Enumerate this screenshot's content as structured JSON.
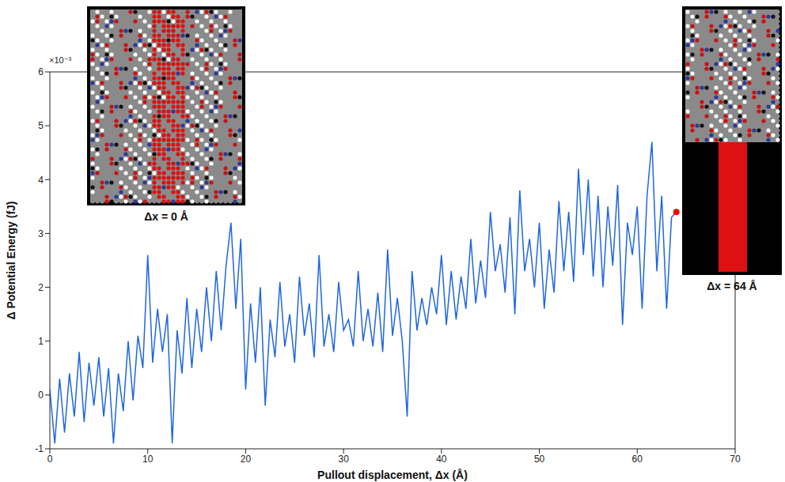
{
  "chart_data": {
    "type": "line",
    "x_label": "Pullout displacement, Δx (Å)",
    "y_label": "Δ Potential Energy (fJ)",
    "annotations": [
      "×10⁻³",
      "Δx = 0 Å",
      "Δx = 64 Å"
    ],
    "color": "#1f66e0",
    "grid": false,
    "xlim": [
      0,
      70
    ],
    "xticks": [
      0,
      10,
      20,
      30,
      40,
      50,
      60,
      70
    ],
    "ylim": [
      -1,
      6
    ],
    "yticks": [
      -1,
      0,
      1,
      2,
      3,
      4,
      5,
      6
    ],
    "end_point": {
      "x": 64,
      "y": 3.4,
      "color": "#ff0000"
    },
    "x": [
      0,
      0.5,
      1,
      1.5,
      2,
      2.5,
      3,
      3.5,
      4,
      4.5,
      5,
      5.5,
      6,
      6.5,
      7,
      7.5,
      8,
      8.5,
      9,
      9.5,
      10,
      10.5,
      11,
      11.5,
      12,
      12.5,
      13,
      13.5,
      14,
      14.5,
      15,
      15.5,
      16,
      16.5,
      17,
      17.5,
      18,
      18.5,
      19,
      19.5,
      20,
      20.5,
      21,
      21.5,
      22,
      22.5,
      23,
      23.5,
      24,
      24.5,
      25,
      25.5,
      26,
      26.5,
      27,
      27.5,
      28,
      28.5,
      29,
      29.5,
      30,
      30.5,
      31,
      31.5,
      32,
      32.5,
      33,
      33.5,
      34,
      34.5,
      35,
      35.5,
      36,
      36.5,
      37,
      37.5,
      38,
      38.5,
      39,
      39.5,
      40,
      40.5,
      41,
      41.5,
      42,
      42.5,
      43,
      43.5,
      44,
      44.5,
      45,
      45.5,
      46,
      46.5,
      47,
      47.5,
      48,
      48.5,
      49,
      49.5,
      50,
      50.5,
      51,
      51.5,
      52,
      52.5,
      53,
      53.5,
      54,
      54.5,
      55,
      55.5,
      56,
      56.5,
      57,
      57.5,
      58,
      58.5,
      59,
      59.5,
      60,
      60.5,
      61,
      61.5,
      62,
      62.5,
      63,
      63.5,
      64
    ],
    "values": [
      0.1,
      -0.9,
      0.3,
      -0.7,
      0.4,
      -0.4,
      0.8,
      -0.5,
      0.6,
      -0.2,
      0.7,
      -0.4,
      0.5,
      -0.9,
      0.4,
      -0.3,
      1.0,
      -0.1,
      1.1,
      0.5,
      2.6,
      0.6,
      1.6,
      0.8,
      1.5,
      -0.9,
      1.2,
      0.4,
      1.8,
      0.5,
      1.6,
      0.8,
      2.0,
      1.0,
      2.3,
      1.2,
      2.4,
      3.2,
      1.6,
      2.9,
      0.1,
      1.7,
      0.6,
      2.0,
      -0.2,
      1.4,
      0.7,
      2.1,
      0.9,
      1.5,
      0.6,
      2.2,
      1.1,
      1.7,
      0.7,
      2.6,
      0.9,
      1.5,
      0.8,
      2.1,
      1.2,
      1.4,
      0.9,
      2.3,
      1.0,
      1.6,
      0.9,
      1.9,
      0.8,
      2.7,
      1.1,
      1.8,
      1.0,
      -0.4,
      2.3,
      1.2,
      1.8,
      1.3,
      2.0,
      1.5,
      2.6,
      1.3,
      2.3,
      1.4,
      2.2,
      1.6,
      2.9,
      1.7,
      2.5,
      1.8,
      3.4,
      2.3,
      2.8,
      1.9,
      3.3,
      1.5,
      3.8,
      2.3,
      2.9,
      2.0,
      3.2,
      1.6,
      2.7,
      1.9,
      3.6,
      2.3,
      3.4,
      2.1,
      4.2,
      2.6,
      4.0,
      2.2,
      3.7,
      2.0,
      3.5,
      2.4,
      3.9,
      1.3,
      3.2,
      2.6,
      3.5,
      1.6,
      3.7,
      4.7,
      2.3,
      3.7,
      1.6,
      3.3,
      3.4
    ]
  }
}
